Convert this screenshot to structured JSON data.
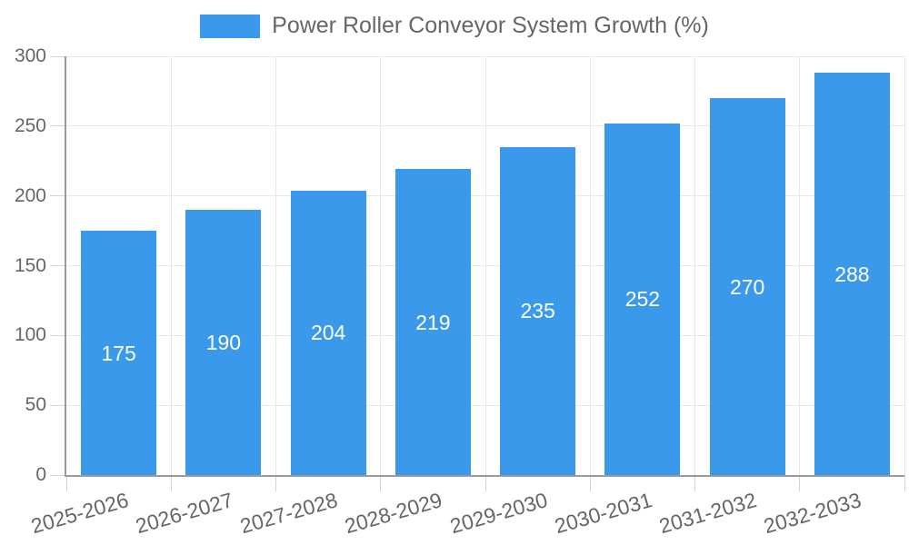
{
  "legend": {
    "label": "Power Roller Conveyor System Growth (%)",
    "swatch_color": "#3b99ec"
  },
  "chart_data": {
    "type": "bar",
    "series_name": "Power Roller Conveyor System Growth (%)",
    "categories": [
      "2025-2026",
      "2026-2027",
      "2027-2028",
      "2028-2029",
      "2029-2030",
      "2030-2031",
      "2031-2032",
      "2032-2033"
    ],
    "values": [
      175,
      190,
      204,
      219,
      235,
      252,
      270,
      288
    ],
    "xlabel": "",
    "ylabel": "",
    "ylim": [
      0,
      300
    ],
    "yticks": [
      0,
      50,
      100,
      150,
      200,
      250,
      300
    ],
    "grid": true,
    "legend_position": "top-center",
    "value_labels_position": "inside-center"
  },
  "colors": {
    "background": "#ffffff",
    "bar": "#3b99ec",
    "bar_label": "#ffffff",
    "tick_text": "#666666",
    "legend_text": "#666666",
    "gridline": "#e8e8e8",
    "tick_mark": "#d4d4d4",
    "axis_line": "#9a9a9a"
  }
}
